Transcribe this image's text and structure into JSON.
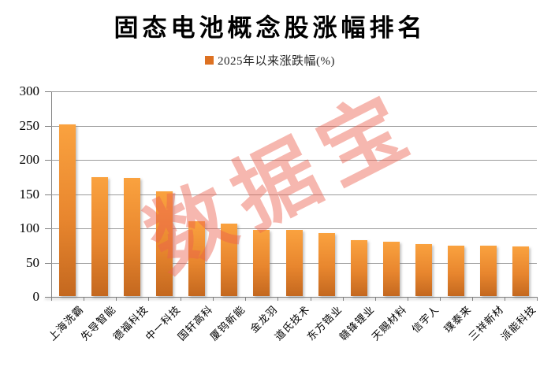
{
  "title": {
    "text": "固态电池概念股涨幅排名"
  },
  "legend": {
    "label": "2025年以来涨跌幅(%)",
    "swatch_color": "#dd7122"
  },
  "watermark": {
    "text": "数据宝",
    "color": "#ec5f4e"
  },
  "chart_data": {
    "type": "bar",
    "title": "固态电池概念股涨幅排名",
    "legend_entries": [
      "2025年以来涨跌幅(%)"
    ],
    "legend_position": "top",
    "categories": [
      "上海洗霸",
      "先导智能",
      "德福科技",
      "中一科技",
      "国轩高科",
      "厦钨新能",
      "金龙羽",
      "道氏技术",
      "东方锆业",
      "赣锋锂业",
      "天赐材料",
      "信宇人",
      "璞泰来",
      "三祥新材",
      "派能科技"
    ],
    "values": [
      250,
      173,
      172,
      153,
      109,
      106,
      97,
      96,
      92,
      82,
      79,
      76,
      74,
      73,
      72
    ],
    "xlabel": "",
    "ylabel": "",
    "ylim": [
      0,
      300
    ],
    "ytick_interval": 50,
    "yticks": [
      300,
      250,
      200,
      150,
      100,
      50,
      0
    ],
    "grid": true,
    "gridline_color": "#9b9b9b",
    "bar_color_top": "#faa23f",
    "bar_color_bottom": "#c4681f",
    "watermark": "数据宝"
  }
}
